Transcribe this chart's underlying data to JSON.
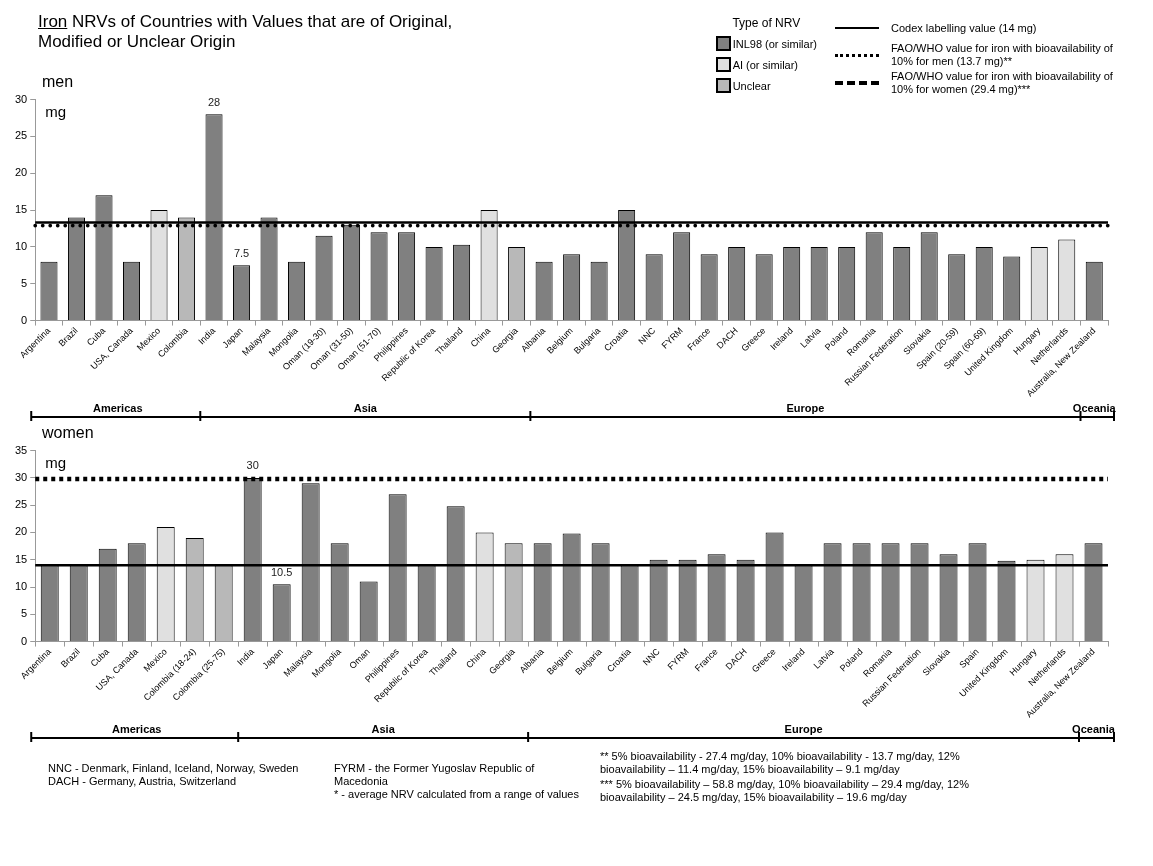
{
  "chart_data": [
    {
      "type": "bar",
      "title": "Iron NRVs of Countries with Values that are of Original, Modified or Unclear Origin",
      "subtitle": "men",
      "ylabel": "mg",
      "legend_title": "Type of NRV",
      "legend": "top right",
      "stacked": true,
      "grid": false,
      "categories": [
        "Argentina",
        "Brazil",
        "Cuba",
        "USA, Canada",
        "Mexico",
        "Colombia",
        "India",
        "Japan",
        "Malaysia",
        "Mongolia",
        "Oman (19-30)",
        "Oman (31-50)",
        "Oman (51-70)",
        "Philippines",
        "Republic of Korea",
        "Thailand",
        "China",
        "Georgia",
        "Albania",
        "Belgium",
        "Bulgaria",
        "Croatia",
        "NNC",
        "FYRM",
        "France",
        "DACH",
        "Greece",
        "Ireland",
        "Latvia",
        "Poland",
        "Romania",
        "Russian Federation",
        "Slovakia",
        "Spain (20-59)",
        "Spain (60-69)",
        "United Kingdom",
        "Hungary",
        "Netherlands",
        "Australia, New Zealand"
      ],
      "series": [
        {
          "name": "INL98 (or similar)",
          "color": "#808080",
          "values": [
            8,
            14,
            17,
            8,
            null,
            null,
            28,
            7.5,
            14,
            8,
            11.5,
            13,
            12,
            12,
            10,
            10.3,
            null,
            null,
            8,
            9,
            8,
            15,
            9,
            12,
            9,
            10,
            9,
            10,
            10,
            10,
            12,
            10,
            12,
            9,
            10,
            8.7,
            null,
            null,
            8
          ],
          "value_labels": [
            null,
            null,
            null,
            null,
            null,
            null,
            "28",
            "7.5",
            null,
            null,
            null,
            null,
            null,
            null,
            null,
            null,
            null,
            null,
            null,
            null,
            null,
            null,
            null,
            null,
            null,
            null,
            null,
            null,
            null,
            null,
            null,
            null,
            null,
            null,
            null,
            null,
            null,
            null,
            null
          ]
        },
        {
          "name": "AI (or similar)",
          "color": "#e0e0e0",
          "values": [
            null,
            null,
            null,
            null,
            15,
            null,
            null,
            null,
            null,
            null,
            null,
            null,
            null,
            null,
            null,
            null,
            15,
            null,
            null,
            null,
            null,
            null,
            null,
            null,
            null,
            null,
            null,
            null,
            null,
            null,
            null,
            null,
            null,
            null,
            null,
            null,
            10,
            11,
            null
          ]
        },
        {
          "name": "Unclear",
          "color": "#b8b8b8",
          "values": [
            null,
            null,
            null,
            null,
            null,
            14,
            null,
            null,
            null,
            null,
            null,
            null,
            null,
            null,
            null,
            null,
            null,
            10,
            null,
            null,
            null,
            null,
            null,
            null,
            null,
            null,
            null,
            null,
            null,
            null,
            null,
            null,
            null,
            null,
            null,
            null,
            null,
            null,
            null
          ]
        }
      ],
      "ylim": [
        0,
        30
      ],
      "yticks": [
        0,
        5,
        10,
        15,
        20,
        25,
        30
      ],
      "ref_lines": [
        {
          "axis": "y",
          "value": 13.3,
          "label": "Codex labelling value (14 mg)",
          "line_style": "solid",
          "color": "#000000"
        },
        {
          "axis": "y",
          "value": 12.9,
          "label": "FAO/WHO value for iron with bioavailability of 10% for men (13.7 mg)**",
          "line_style": "dotted",
          "color": "#000000"
        }
      ],
      "annotations": [
        "Americas",
        "Asia",
        "Europe",
        "Oceania"
      ]
    },
    {
      "type": "bar",
      "subtitle": "women",
      "ylabel": "mg",
      "stacked": true,
      "grid": false,
      "categories": [
        "Argentina",
        "Brazil",
        "Cuba",
        "USA, Canada",
        "Mexico",
        "Colombia (18-24)",
        "Colombia (25-75)",
        "India",
        "Japan",
        "Malaysia",
        "Mongolia",
        "Oman",
        "Philippines",
        "Republic of Korea",
        "Thailand",
        "China",
        "Georgia",
        "Albania",
        "Belgium",
        "Bulgaria",
        "Croatia",
        "NNC",
        "FYRM",
        "France",
        "DACH",
        "Greece",
        "Ireland",
        "Latvia",
        "Poland",
        "Romania",
        "Russian Federation",
        "Slovakia",
        "Spain",
        "United Kingdom",
        "Hungary",
        "Netherlands",
        "Australia, New Zealand"
      ],
      "series": [
        {
          "color": "#808080",
          "values": [
            14,
            14,
            17,
            18,
            null,
            null,
            null,
            30,
            10.5,
            29,
            18,
            11,
            27,
            14,
            24.8,
            null,
            null,
            18,
            19.8,
            18,
            14,
            15,
            15,
            16,
            15,
            20,
            14,
            18,
            18,
            18,
            18,
            16,
            18,
            14.8,
            null,
            null,
            18
          ],
          "value_labels": [
            null,
            null,
            null,
            null,
            null,
            null,
            null,
            "30",
            "10.5",
            null,
            null,
            null,
            null,
            null,
            null,
            null,
            null,
            null,
            null,
            null,
            null,
            null,
            null,
            null,
            null,
            null,
            null,
            null,
            null,
            null,
            null,
            null,
            null,
            null,
            null,
            null,
            null
          ]
        },
        {
          "color": "#e0e0e0",
          "values": [
            null,
            null,
            null,
            null,
            21,
            null,
            null,
            null,
            null,
            null,
            null,
            null,
            null,
            null,
            null,
            20,
            null,
            null,
            null,
            null,
            null,
            null,
            null,
            null,
            null,
            null,
            null,
            null,
            null,
            null,
            null,
            null,
            null,
            null,
            15,
            16,
            null
          ]
        },
        {
          "color": "#b8b8b8",
          "values": [
            null,
            null,
            null,
            null,
            null,
            19,
            14,
            null,
            null,
            null,
            null,
            null,
            null,
            null,
            null,
            null,
            18,
            null,
            null,
            null,
            null,
            null,
            null,
            null,
            null,
            null,
            null,
            null,
            null,
            null,
            null,
            null,
            null,
            null,
            null,
            null,
            null
          ]
        }
      ],
      "ylim": [
        0,
        35
      ],
      "yticks": [
        0,
        5,
        10,
        15,
        20,
        25,
        30,
        35
      ],
      "ref_lines": [
        {
          "axis": "y",
          "value": 14,
          "line_style": "solid",
          "color": "#000000"
        },
        {
          "axis": "y",
          "value": 29.8,
          "label": "FAO/WHO value for iron with bioavailability of 10% for women (29.4 mg)***",
          "line_style": "dashed",
          "color": "#000000"
        }
      ],
      "annotations": [
        "Americas",
        "Asia",
        "Europe",
        "Oceania",
        "NNC -  Denmark, Finland, Iceland, Norway, Sweden",
        "DACH - Germany, Austria, Switzerland",
        "FYRM -   the Former Yugoslav Republic of Macedonia",
        "* - average NRV calculated from a range of values",
        "** 5% bioavailability - 27.4 mg/day, 10% bioavailability - 13.7 mg/day, 12% bioavailability – 11.4 mg/day, 15% bioavailability – 9.1 mg/day",
        "*** 5% bioavailability – 58.8 mg/day, 10% bioavailability – 29.4 mg/day, 12% bioavailability – 24.5 mg/day, 15% bioavailability – 19.6 mg/day"
      ]
    }
  ]
}
